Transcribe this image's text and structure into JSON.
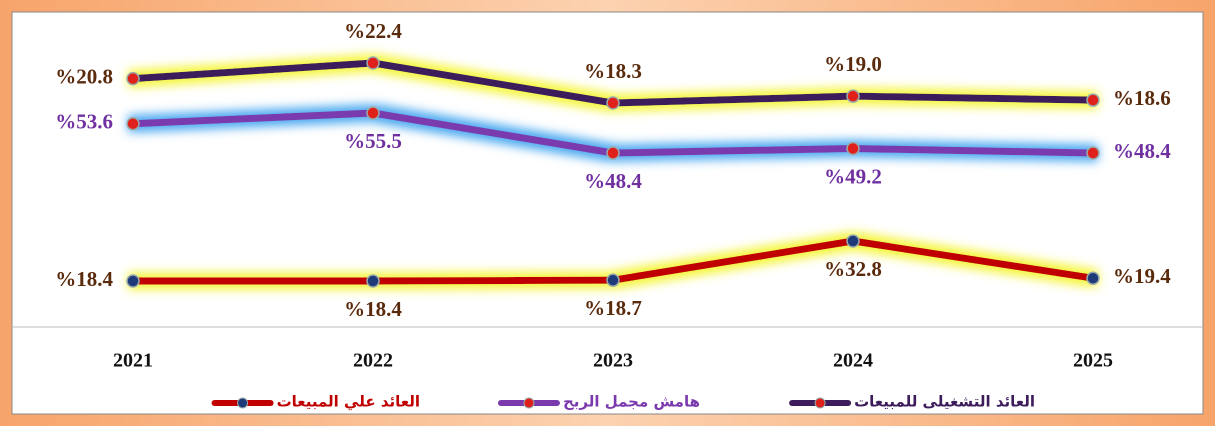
{
  "chart_data": {
    "type": "line",
    "categories": [
      "2021",
      "2022",
      "2023",
      "2024",
      "2025"
    ],
    "series": [
      {
        "name": "العائد التشغيلى للمبيعات",
        "color": "#3d1c5c",
        "marker_color": "#e0201a",
        "glow_color": "#f5f53a",
        "label_color": "#5a2a0c",
        "values": [
          20.8,
          22.4,
          18.3,
          19.0,
          18.6
        ],
        "value_labels": [
          "%20.8",
          "%22.4",
          "%18.3",
          "%19.0",
          "%18.6"
        ]
      },
      {
        "name": "هامش مجمل الربح",
        "color": "#7a3aae",
        "marker_color": "#e0201a",
        "glow_color": "#4aa8f0",
        "label_color": "#7030a0",
        "values": [
          53.6,
          55.5,
          48.4,
          49.2,
          48.4
        ],
        "value_labels": [
          "%53.6",
          "%55.5",
          "%48.4",
          "%49.2",
          "%48.4"
        ]
      },
      {
        "name": "العائد علي المبيعات",
        "color": "#c00000",
        "marker_color": "#1f3a78",
        "glow_color": "#f5f53a",
        "label_color": "#5a2a0c",
        "values": [
          18.4,
          18.4,
          18.7,
          32.8,
          19.4
        ],
        "value_labels": [
          "%18.4",
          "%18.4",
          "%18.7",
          "%32.8",
          "%19.4"
        ]
      }
    ]
  }
}
